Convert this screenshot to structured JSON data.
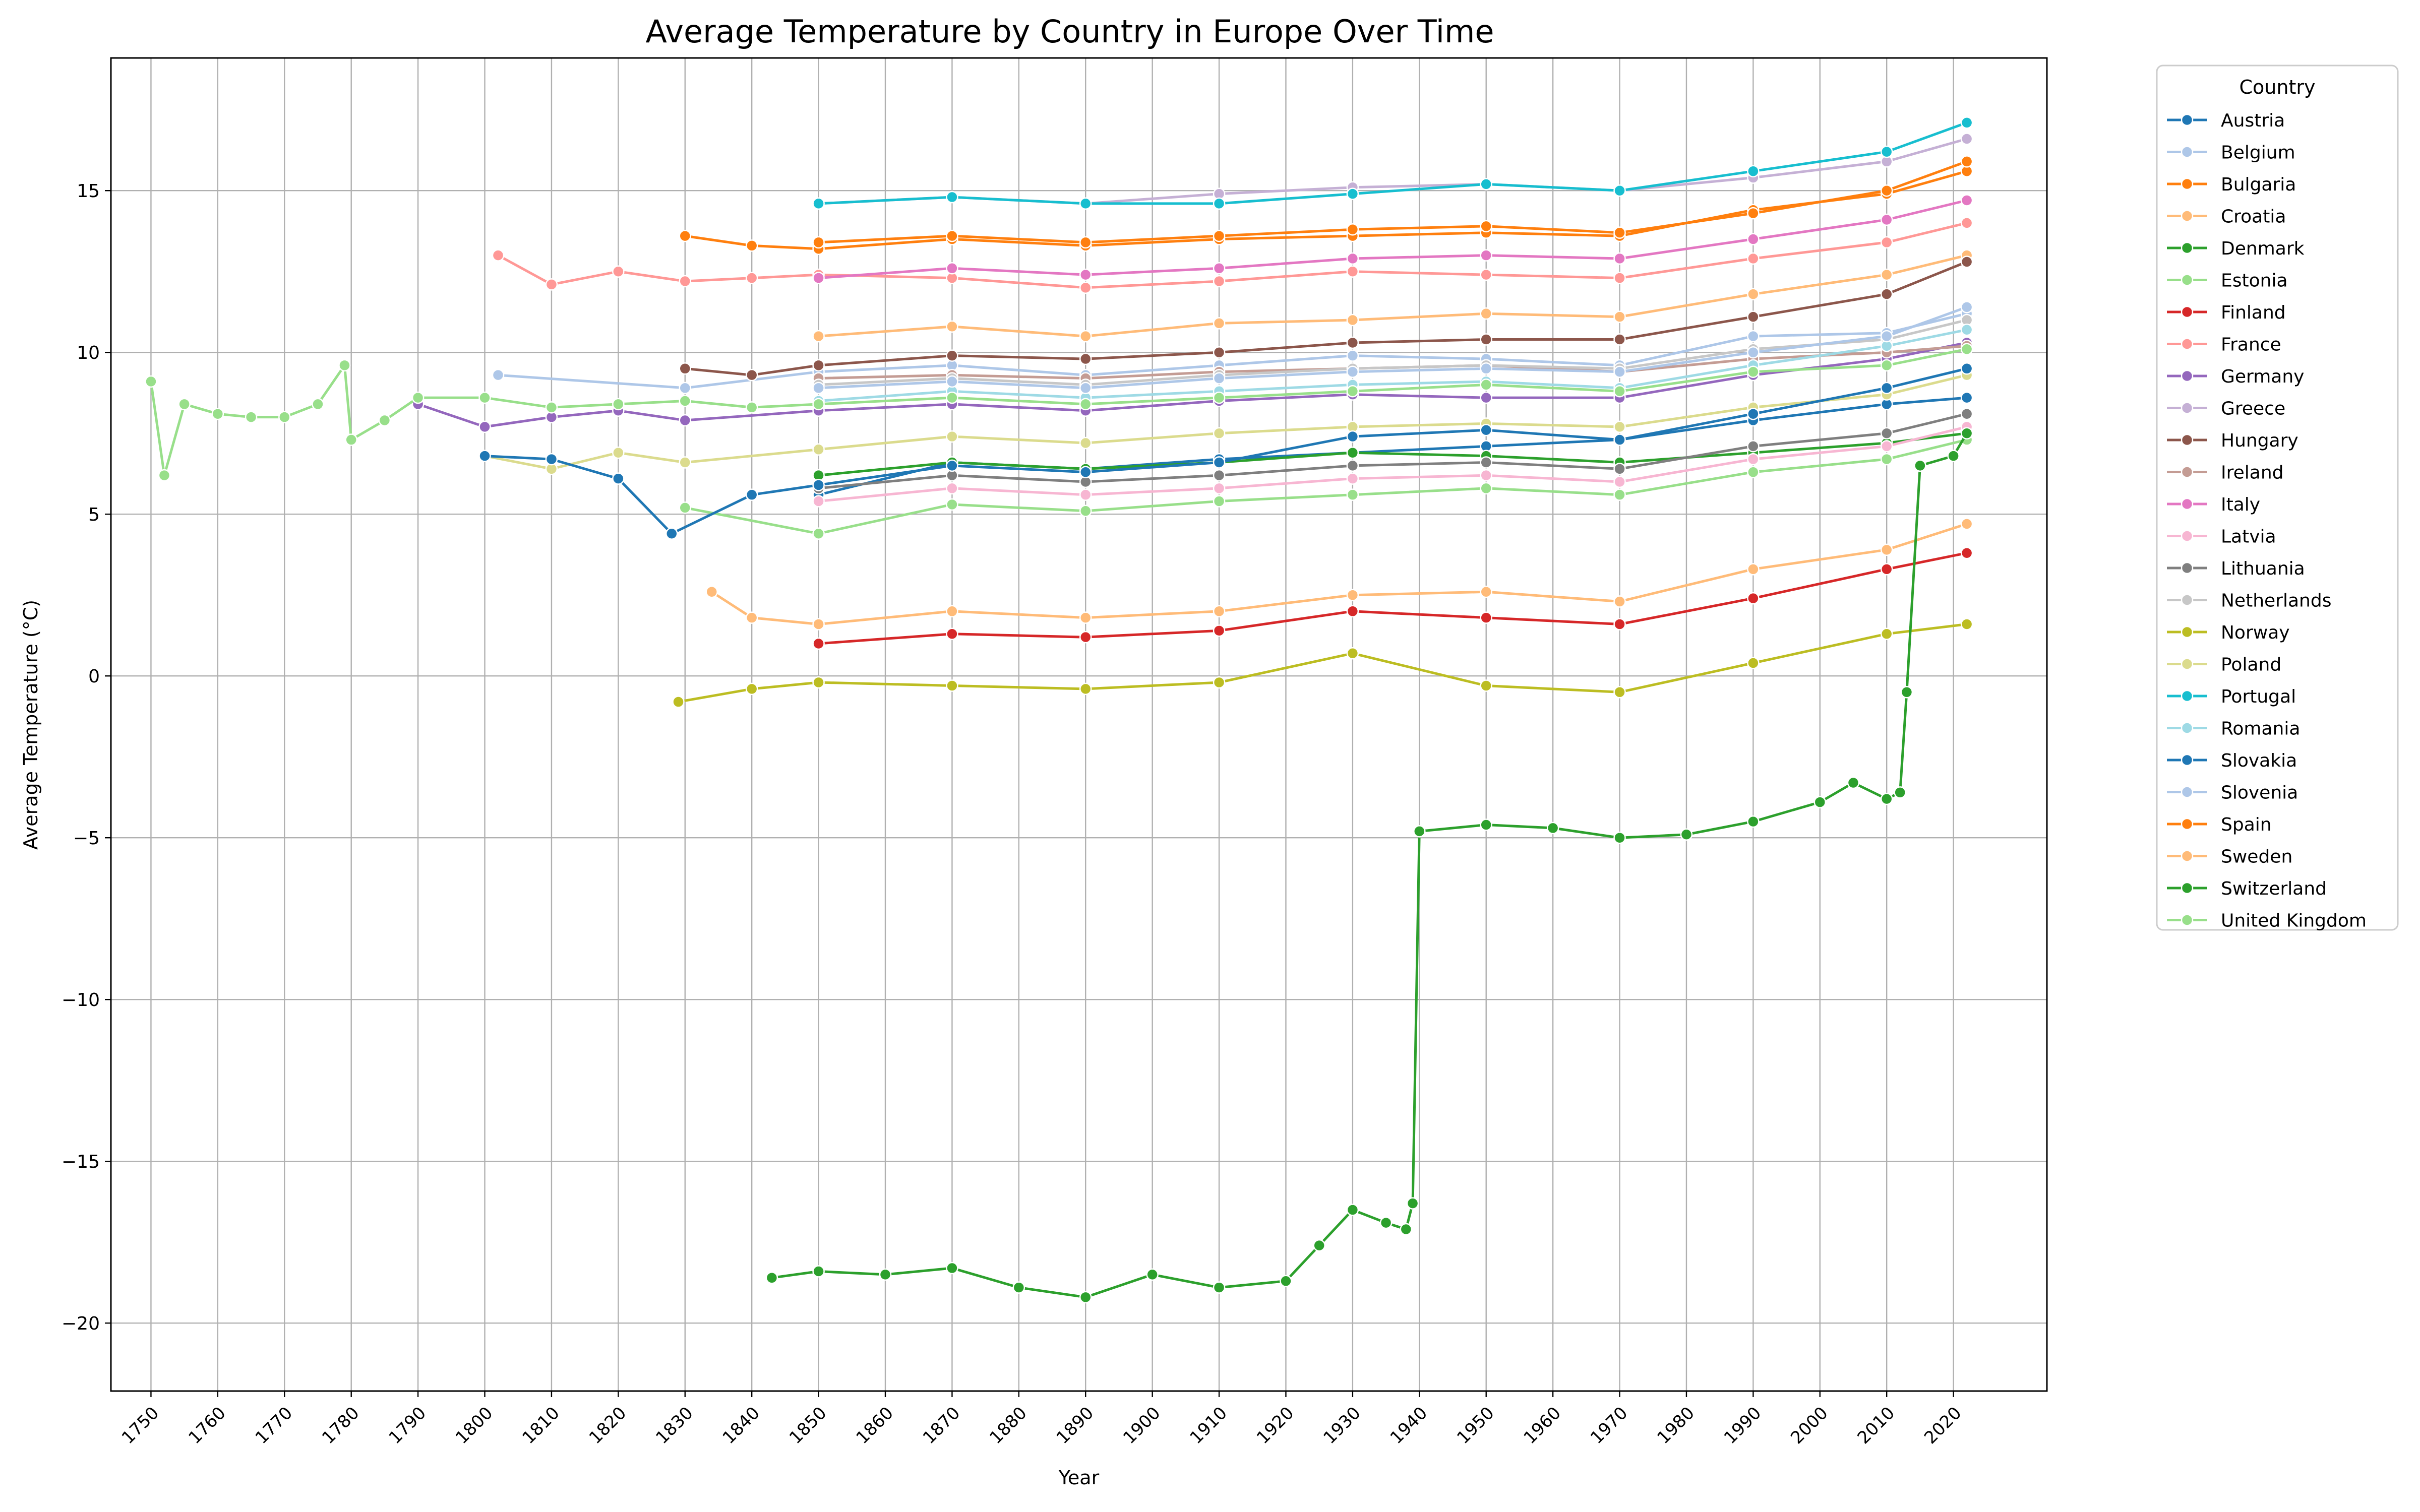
{
  "chart_data": {
    "type": "line",
    "title": "Average Temperature by Country in Europe Over Time",
    "xlabel": "Year",
    "ylabel": "Average Temperature (°C)",
    "xlim": [
      1744,
      2034
    ],
    "ylim": [
      -22.1,
      19.1
    ],
    "x_ticks": [
      1750,
      1760,
      1770,
      1780,
      1790,
      1800,
      1810,
      1820,
      1830,
      1840,
      1850,
      1860,
      1870,
      1880,
      1890,
      1900,
      1910,
      1920,
      1930,
      1940,
      1950,
      1960,
      1970,
      1980,
      1990,
      2000,
      2010,
      2020
    ],
    "x_tick_labels": [
      "1750",
      "1760",
      "1770",
      "1780",
      "1790",
      "1800",
      "1810",
      "1820",
      "1830",
      "1840",
      "1850",
      "1860",
      "1870",
      "1880",
      "1890",
      "1900",
      "1910",
      "1920",
      "1930",
      "1940",
      "1950",
      "1960",
      "1970",
      "1980",
      "1990",
      "2000",
      "2010",
      "2020"
    ],
    "y_ticks": [
      -20,
      -15,
      -10,
      -5,
      0,
      5,
      10,
      15
    ],
    "y_tick_labels": [
      "−20",
      "−15",
      "−10",
      "−5",
      "0",
      "5",
      "10",
      "15"
    ],
    "grid": true,
    "legend": {
      "title": "Country",
      "position": "outside-right"
    },
    "marker": "circle",
    "series": [
      {
        "name": "Austria",
        "color": "#1f77b4",
        "x": [
          1850,
          1870,
          1890,
          1910,
          1930,
          1950,
          1970,
          1990,
          2010,
          2022
        ],
        "y": [
          5.6,
          6.6,
          6.4,
          6.7,
          6.9,
          7.1,
          7.3,
          7.9,
          8.4,
          8.6
        ]
      },
      {
        "name": "Belgium",
        "color": "#aec7e8",
        "x": [
          1802,
          1830,
          1850,
          1870,
          1890,
          1910,
          1930,
          1950,
          1970,
          1990,
          2010,
          2022
        ],
        "y": [
          9.3,
          8.9,
          9.4,
          9.6,
          9.3,
          9.6,
          9.9,
          9.8,
          9.6,
          10.5,
          10.6,
          11.2
        ]
      },
      {
        "name": "Bulgaria",
        "color": "#ff7f0e",
        "x": [
          1830,
          1840,
          1850,
          1870,
          1890,
          1910,
          1930,
          1950,
          1970,
          1990,
          2010,
          2022
        ],
        "y": [
          13.6,
          13.3,
          13.2,
          13.5,
          13.3,
          13.5,
          13.6,
          13.7,
          13.6,
          14.4,
          14.9,
          15.6
        ]
      },
      {
        "name": "Croatia",
        "color": "#ffbb78",
        "x": [
          1850,
          1870,
          1890,
          1910,
          1930,
          1950,
          1970,
          1990,
          2010,
          2022
        ],
        "y": [
          10.5,
          10.8,
          10.5,
          10.9,
          11.0,
          11.2,
          11.1,
          11.8,
          12.4,
          13.0
        ]
      },
      {
        "name": "Denmark",
        "color": "#2ca02c",
        "x": [
          1850,
          1870,
          1890,
          1910,
          1930,
          1950,
          1970,
          1990,
          2010,
          2022
        ],
        "y": [
          6.2,
          6.6,
          6.4,
          6.6,
          6.9,
          6.8,
          6.6,
          6.9,
          7.2,
          7.5
        ]
      },
      {
        "name": "Estonia",
        "color": "#98df8a",
        "x": [
          1830,
          1850,
          1870,
          1890,
          1910,
          1930,
          1950,
          1970,
          1990,
          2010,
          2022
        ],
        "y": [
          5.2,
          4.4,
          5.3,
          5.1,
          5.4,
          5.6,
          5.8,
          5.6,
          6.3,
          6.7,
          7.3
        ]
      },
      {
        "name": "Finland",
        "color": "#d62728",
        "x": [
          1850,
          1870,
          1890,
          1910,
          1930,
          1950,
          1970,
          1990,
          2010,
          2022
        ],
        "y": [
          1.0,
          1.3,
          1.2,
          1.4,
          2.0,
          1.8,
          1.6,
          2.4,
          3.3,
          3.8
        ]
      },
      {
        "name": "France",
        "color": "#ff9896",
        "x": [
          1802,
          1810,
          1820,
          1830,
          1840,
          1850,
          1870,
          1890,
          1910,
          1930,
          1950,
          1970,
          1990,
          2010,
          2022
        ],
        "y": [
          13.0,
          12.1,
          12.5,
          12.2,
          12.3,
          12.4,
          12.3,
          12.0,
          12.2,
          12.5,
          12.4,
          12.3,
          12.9,
          13.4,
          14.0
        ]
      },
      {
        "name": "Germany",
        "color": "#9467bd",
        "x": [
          1790,
          1800,
          1810,
          1820,
          1830,
          1850,
          1870,
          1890,
          1910,
          1930,
          1950,
          1970,
          1990,
          2010,
          2022
        ],
        "y": [
          8.4,
          7.7,
          8.0,
          8.2,
          7.9,
          8.2,
          8.4,
          8.2,
          8.5,
          8.7,
          8.6,
          8.6,
          9.3,
          9.8,
          10.3
        ]
      },
      {
        "name": "Greece",
        "color": "#c5b0d5",
        "x": [
          1850,
          1870,
          1890,
          1910,
          1930,
          1950,
          1970,
          1990,
          2010,
          2022
        ],
        "y": [
          14.6,
          14.8,
          14.6,
          14.9,
          15.1,
          15.2,
          15.0,
          15.4,
          15.9,
          16.6
        ]
      },
      {
        "name": "Hungary",
        "color": "#8c564b",
        "x": [
          1830,
          1840,
          1850,
          1870,
          1890,
          1910,
          1930,
          1950,
          1970,
          1990,
          2010,
          2022
        ],
        "y": [
          9.5,
          9.3,
          9.6,
          9.9,
          9.8,
          10.0,
          10.3,
          10.4,
          10.4,
          11.1,
          11.8,
          12.8
        ]
      },
      {
        "name": "Ireland",
        "color": "#c49c94",
        "x": [
          1850,
          1870,
          1890,
          1910,
          1930,
          1950,
          1970,
          1990,
          2010,
          2022
        ],
        "y": [
          9.2,
          9.3,
          9.2,
          9.4,
          9.5,
          9.6,
          9.4,
          9.8,
          10.0,
          10.2
        ]
      },
      {
        "name": "Italy",
        "color": "#e377c2",
        "x": [
          1850,
          1870,
          1890,
          1910,
          1930,
          1950,
          1970,
          1990,
          2010,
          2022
        ],
        "y": [
          12.3,
          12.6,
          12.4,
          12.6,
          12.9,
          13.0,
          12.9,
          13.5,
          14.1,
          14.7
        ]
      },
      {
        "name": "Latvia",
        "color": "#f7b6d2",
        "x": [
          1850,
          1870,
          1890,
          1910,
          1930,
          1950,
          1970,
          1990,
          2010,
          2022
        ],
        "y": [
          5.4,
          5.8,
          5.6,
          5.8,
          6.1,
          6.2,
          6.0,
          6.7,
          7.1,
          7.7
        ]
      },
      {
        "name": "Lithuania",
        "color": "#7f7f7f",
        "x": [
          1850,
          1870,
          1890,
          1910,
          1930,
          1950,
          1970,
          1990,
          2010,
          2022
        ],
        "y": [
          5.8,
          6.2,
          6.0,
          6.2,
          6.5,
          6.6,
          6.4,
          7.1,
          7.5,
          8.1
        ]
      },
      {
        "name": "Netherlands",
        "color": "#c7c7c7",
        "x": [
          1850,
          1870,
          1890,
          1910,
          1930,
          1950,
          1970,
          1990,
          2010,
          2022
        ],
        "y": [
          9.0,
          9.2,
          9.0,
          9.3,
          9.5,
          9.6,
          9.5,
          10.1,
          10.4,
          11.0
        ]
      },
      {
        "name": "Norway",
        "color": "#bcbd22",
        "x": [
          1829,
          1840,
          1850,
          1870,
          1890,
          1910,
          1930,
          1950,
          1970,
          1990,
          2010,
          2022
        ],
        "y": [
          -0.8,
          -0.4,
          -0.2,
          -0.3,
          -0.4,
          -0.2,
          0.7,
          -0.3,
          -0.5,
          0.4,
          1.3,
          1.6
        ]
      },
      {
        "name": "Poland",
        "color": "#dbdb8d",
        "x": [
          1800,
          1810,
          1820,
          1830,
          1850,
          1870,
          1890,
          1910,
          1930,
          1950,
          1970,
          1990,
          2010,
          2022
        ],
        "y": [
          6.8,
          6.4,
          6.9,
          6.6,
          7.0,
          7.4,
          7.2,
          7.5,
          7.7,
          7.8,
          7.7,
          8.3,
          8.7,
          9.3
        ]
      },
      {
        "name": "Portugal",
        "color": "#17becf",
        "x": [
          1850,
          1870,
          1890,
          1910,
          1930,
          1950,
          1970,
          1990,
          2010,
          2022
        ],
        "y": [
          14.6,
          14.8,
          14.6,
          14.6,
          14.9,
          15.2,
          15.0,
          15.6,
          16.2,
          17.1
        ]
      },
      {
        "name": "Romania",
        "color": "#9edae5",
        "x": [
          1850,
          1870,
          1890,
          1910,
          1930,
          1950,
          1970,
          1990,
          2010,
          2022
        ],
        "y": [
          8.5,
          8.8,
          8.6,
          8.8,
          9.0,
          9.1,
          8.9,
          9.6,
          10.2,
          10.7
        ]
      },
      {
        "name": "Slovakia",
        "color": "#1f77b4",
        "x": [
          1800,
          1810,
          1820,
          1828,
          1840,
          1850,
          1870,
          1890,
          1910,
          1930,
          1950,
          1970,
          1990,
          2010,
          2022
        ],
        "y": [
          6.8,
          6.7,
          6.1,
          4.4,
          5.6,
          5.9,
          6.5,
          6.3,
          6.6,
          7.4,
          7.6,
          7.3,
          8.1,
          8.9,
          9.5
        ]
      },
      {
        "name": "Slovenia",
        "color": "#aec7e8",
        "x": [
          1850,
          1870,
          1890,
          1910,
          1930,
          1950,
          1970,
          1990,
          2010,
          2022
        ],
        "y": [
          8.9,
          9.1,
          8.9,
          9.2,
          9.4,
          9.5,
          9.4,
          10.0,
          10.5,
          11.4
        ]
      },
      {
        "name": "Spain",
        "color": "#ff7f0e",
        "x": [
          1850,
          1870,
          1890,
          1910,
          1930,
          1950,
          1970,
          1990,
          2010,
          2022
        ],
        "y": [
          13.4,
          13.6,
          13.4,
          13.6,
          13.8,
          13.9,
          13.7,
          14.3,
          15.0,
          15.9
        ]
      },
      {
        "name": "Sweden",
        "color": "#ffbb78",
        "x": [
          1834,
          1840,
          1850,
          1870,
          1890,
          1910,
          1930,
          1950,
          1970,
          1990,
          2010,
          2022
        ],
        "y": [
          2.6,
          1.8,
          1.6,
          2.0,
          1.8,
          2.0,
          2.5,
          2.6,
          2.3,
          3.3,
          3.9,
          4.7
        ]
      },
      {
        "name": "Switzerland",
        "color": "#2ca02c",
        "x": [
          1843,
          1850,
          1860,
          1870,
          1880,
          1890,
          1900,
          1910,
          1920,
          1925,
          1930,
          1935,
          1938,
          1939,
          1940,
          1950,
          1960,
          1970,
          1980,
          1990,
          2000,
          2005,
          2010,
          2012,
          2013,
          2015,
          2020,
          2022
        ],
        "y": [
          -18.6,
          -18.4,
          -18.5,
          -18.3,
          -18.9,
          -19.2,
          -18.5,
          -18.9,
          -18.7,
          -17.6,
          -16.5,
          -16.9,
          -17.1,
          -16.3,
          -4.8,
          -4.6,
          -4.7,
          -5.0,
          -4.9,
          -4.5,
          -3.9,
          -3.3,
          -3.8,
          -3.6,
          -0.5,
          6.5,
          6.8,
          7.5
        ]
      },
      {
        "name": "United Kingdom",
        "color": "#98df8a",
        "x": [
          1750,
          1752,
          1755,
          1760,
          1765,
          1770,
          1775,
          1779,
          1780,
          1785,
          1790,
          1800,
          1810,
          1820,
          1830,
          1840,
          1850,
          1870,
          1890,
          1910,
          1930,
          1950,
          1970,
          1990,
          2010,
          2022
        ],
        "y": [
          9.1,
          6.2,
          8.4,
          8.1,
          8.0,
          8.0,
          8.4,
          9.6,
          7.3,
          7.9,
          8.6,
          8.6,
          8.3,
          8.4,
          8.5,
          8.3,
          8.4,
          8.6,
          8.4,
          8.6,
          8.8,
          9.0,
          8.8,
          9.4,
          9.6,
          10.1
        ]
      }
    ]
  }
}
